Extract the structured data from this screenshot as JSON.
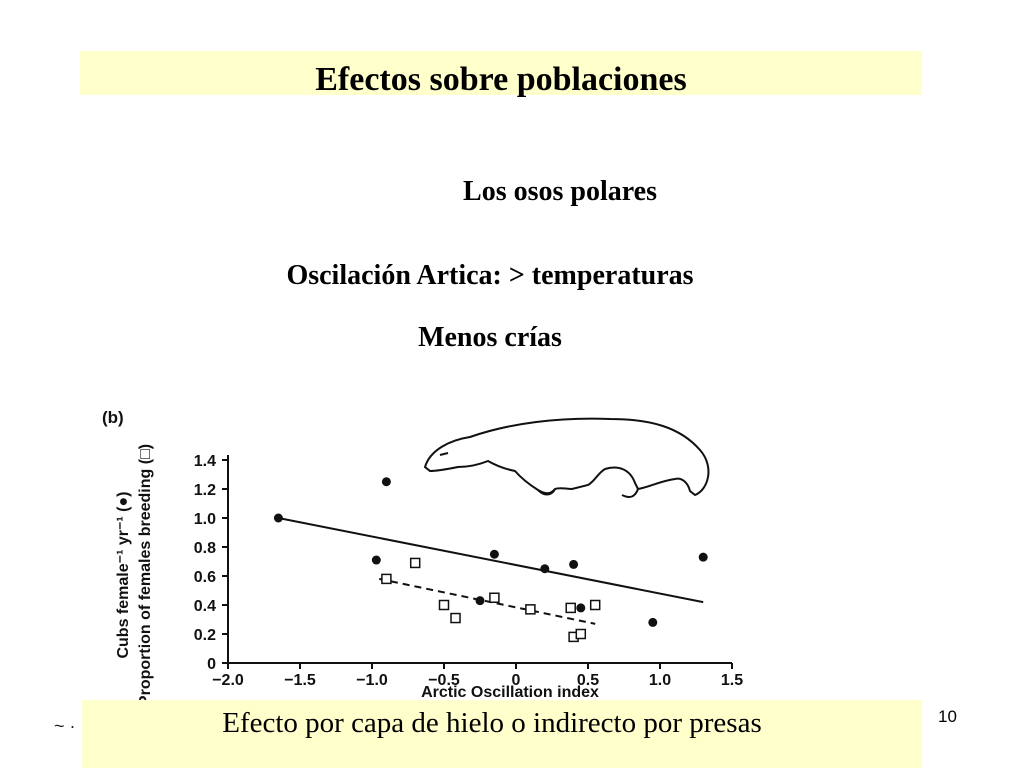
{
  "slide": {
    "title": "Efectos sobre poblaciones",
    "line1": "Los osos polares",
    "line2": "Oscilación Artica: > temperaturas",
    "line3": "Menos crías",
    "footer": "Efecto por capa de hielo o indirecto por presas",
    "page_number": "10",
    "corner_mark": "~ ·"
  },
  "colors": {
    "band": "#ffffcc",
    "ink": "#111111"
  },
  "chart_data": {
    "type": "scatter",
    "panel_label": "(b)",
    "xlabel": "Arctic Oscillation index",
    "ylabel_line1": "Cubs female⁻¹ yr⁻¹ (●)",
    "ylabel_line2": "Proportion of females breeding (□)",
    "xlim": [
      -2.0,
      1.5
    ],
    "ylim": [
      0,
      1.4
    ],
    "xticks": [
      "−2.0",
      "−1.5",
      "−1.0",
      "−0.5",
      "0",
      "0.5",
      "1.0",
      "1.5"
    ],
    "xtick_values": [
      -2.0,
      -1.5,
      -1.0,
      -0.5,
      0,
      0.5,
      1.0,
      1.5
    ],
    "yticks": [
      "0",
      "0.2",
      "0.4",
      "0.6",
      "0.8",
      "1.0",
      "1.2",
      "1.4"
    ],
    "ytick_values": [
      0,
      0.2,
      0.4,
      0.6,
      0.8,
      1.0,
      1.2,
      1.4
    ],
    "series": [
      {
        "marker": "filled-circle",
        "points": [
          [
            -1.65,
            1.0
          ],
          [
            -0.9,
            1.25
          ],
          [
            -0.97,
            0.71
          ],
          [
            -0.15,
            0.75
          ],
          [
            -0.25,
            0.43
          ],
          [
            0.2,
            0.65
          ],
          [
            0.4,
            0.68
          ],
          [
            0.45,
            0.38
          ],
          [
            0.95,
            0.28
          ],
          [
            1.3,
            0.73
          ]
        ],
        "fit": {
          "style": "solid",
          "from": [
            -1.65,
            1.0
          ],
          "to": [
            1.3,
            0.42
          ]
        }
      },
      {
        "marker": "open-square",
        "points": [
          [
            -0.9,
            0.58
          ],
          [
            -0.7,
            0.69
          ],
          [
            -0.5,
            0.4
          ],
          [
            -0.42,
            0.31
          ],
          [
            -0.15,
            0.45
          ],
          [
            0.1,
            0.37
          ],
          [
            0.38,
            0.38
          ],
          [
            0.4,
            0.18
          ],
          [
            0.45,
            0.2
          ],
          [
            0.55,
            0.4
          ]
        ],
        "fit": {
          "style": "dashed",
          "from": [
            -0.95,
            0.58
          ],
          "to": [
            0.55,
            0.27
          ]
        }
      }
    ]
  }
}
